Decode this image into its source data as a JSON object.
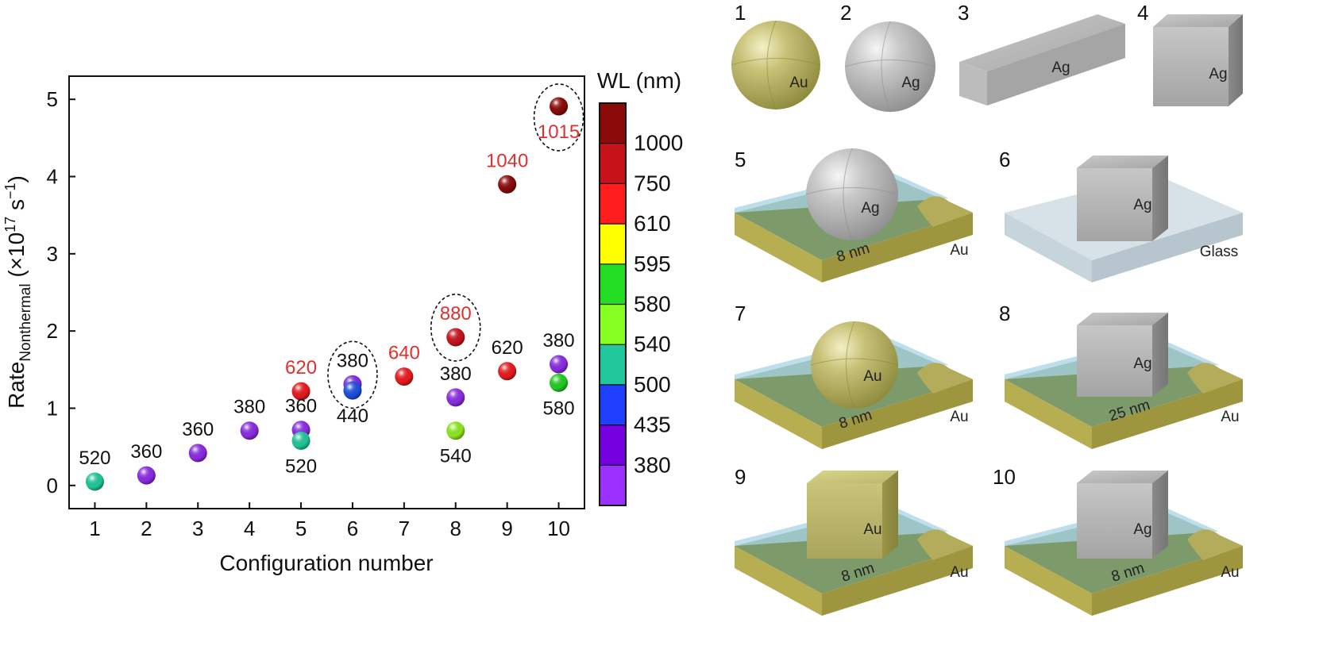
{
  "chart_data": {
    "type": "scatter",
    "xlabel": "Configuration number",
    "ylabel": {
      "base": "Rate",
      "sub": "Nonthermal",
      "unit_open": " (×10",
      "exp": "17",
      "unit_mid": " s",
      "exp2": "−1",
      "unit_close": ")"
    },
    "xlim": [
      0.5,
      10.5
    ],
    "ylim": [
      -0.3,
      5.3
    ],
    "xticks": [
      "1",
      "2",
      "3",
      "4",
      "5",
      "6",
      "7",
      "8",
      "9",
      "10"
    ],
    "yticks": [
      "0",
      "1",
      "2",
      "3",
      "4",
      "5"
    ],
    "points": [
      {
        "x": 1,
        "y": 0.05,
        "wl": 520,
        "label": "520",
        "label_pos": "above",
        "highlight": false,
        "color": "#1fc79a"
      },
      {
        "x": 2,
        "y": 0.13,
        "wl": 360,
        "label": "360",
        "label_pos": "above",
        "highlight": false,
        "color": "#8a2be2"
      },
      {
        "x": 3,
        "y": 0.42,
        "wl": 360,
        "label": "360",
        "label_pos": "above",
        "highlight": false,
        "color": "#8a2be2"
      },
      {
        "x": 4,
        "y": 0.71,
        "wl": 380,
        "label": "380",
        "label_pos": "above",
        "highlight": false,
        "color": "#8a2be2"
      },
      {
        "x": 5,
        "y": 1.22,
        "wl": 620,
        "label": "620",
        "label_pos": "above",
        "highlight": true,
        "color": "#e8191e"
      },
      {
        "x": 5,
        "y": 0.72,
        "wl": 360,
        "label": "360",
        "label_pos": "above",
        "highlight": false,
        "color": "#8a2be2"
      },
      {
        "x": 5,
        "y": 0.58,
        "wl": 520,
        "label": "520",
        "label_pos": "below",
        "highlight": false,
        "color": "#1fc79a"
      },
      {
        "x": 6,
        "y": 1.31,
        "wl": 380,
        "label": "380",
        "label_pos": "above",
        "highlight": false,
        "color": "#7b2be2",
        "circled": true
      },
      {
        "x": 6,
        "y": 1.23,
        "wl": 440,
        "label": "440",
        "label_pos": "below",
        "highlight": false,
        "color": "#1d4fe0"
      },
      {
        "x": 7,
        "y": 1.41,
        "wl": 640,
        "label": "640",
        "label_pos": "above",
        "highlight": true,
        "color": "#e8191e"
      },
      {
        "x": 8,
        "y": 1.92,
        "wl": 880,
        "label": "880",
        "label_pos": "above",
        "highlight": true,
        "color": "#c8121a",
        "circled": true
      },
      {
        "x": 8,
        "y": 1.14,
        "wl": 380,
        "label": "380",
        "label_pos": "above",
        "highlight": false,
        "color": "#8a2be2"
      },
      {
        "x": 8,
        "y": 0.71,
        "wl": 540,
        "label": "540",
        "label_pos": "below",
        "highlight": false,
        "color": "#8fe81f"
      },
      {
        "x": 9,
        "y": 3.9,
        "wl": 1040,
        "label": "1040",
        "label_pos": "above",
        "highlight": true,
        "color": "#8b0a0a"
      },
      {
        "x": 9,
        "y": 1.48,
        "wl": 620,
        "label": "620",
        "label_pos": "above",
        "highlight": false,
        "color": "#e8191e"
      },
      {
        "x": 10,
        "y": 4.91,
        "wl": 1015,
        "label": "1015",
        "label_pos": "below",
        "highlight": true,
        "color": "#8b0a0a",
        "circled": true
      },
      {
        "x": 10,
        "y": 1.57,
        "wl": 380,
        "label": "380",
        "label_pos": "above",
        "highlight": false,
        "color": "#8a2be2"
      },
      {
        "x": 10,
        "y": 1.33,
        "wl": 580,
        "label": "580",
        "label_pos": "below",
        "highlight": false,
        "color": "#22cc22"
      }
    ],
    "colorbar": {
      "title": "WL (nm)",
      "colors_top_to_bottom": [
        "#8b0a0a",
        "#c8121a",
        "#ff1c1c",
        "#ffff00",
        "#22dd22",
        "#88ff22",
        "#1fc79a",
        "#1f3fff",
        "#7400e0",
        "#9b30ff"
      ],
      "labels_top_to_bottom": [
        "1000",
        "750",
        "610",
        "595",
        "580",
        "540",
        "500",
        "435",
        "380"
      ]
    },
    "highlight_color": "#e03030"
  },
  "configurations": [
    {
      "number": "1",
      "labels": [
        "Au"
      ]
    },
    {
      "number": "2",
      "labels": [
        "Ag"
      ]
    },
    {
      "number": "3",
      "labels": [
        "Ag"
      ]
    },
    {
      "number": "4",
      "labels": [
        "Ag"
      ]
    },
    {
      "number": "5",
      "labels": [
        "Ag",
        "Au"
      ],
      "gap": "8 nm"
    },
    {
      "number": "6",
      "labels": [
        "Ag",
        "Glass"
      ]
    },
    {
      "number": "7",
      "labels": [
        "Au",
        "Au"
      ],
      "gap": "8 nm"
    },
    {
      "number": "8",
      "labels": [
        "Ag",
        "Au"
      ],
      "gap": "25 nm"
    },
    {
      "number": "9",
      "labels": [
        "Au",
        "Au"
      ],
      "gap": "8 nm"
    },
    {
      "number": "10",
      "labels": [
        "Ag",
        "Au"
      ],
      "gap": "8 nm"
    }
  ]
}
